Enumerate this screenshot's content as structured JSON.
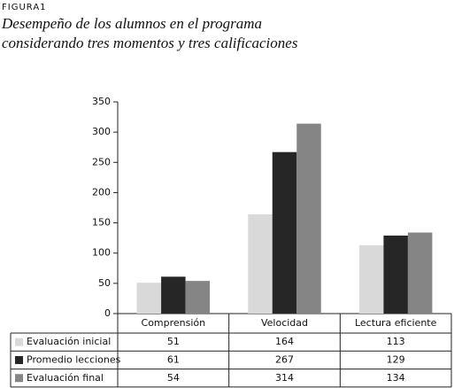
{
  "figure_label": "FIGURA1",
  "chart_data": {
    "type": "bar",
    "title": [
      "Desempeño de los alumnos en el programa",
      "considerando tres momentos y tres calificaciones"
    ],
    "categories": [
      "Comprensión",
      "Velocidad",
      "Lectura eficiente"
    ],
    "series": [
      {
        "name": "Evaluación inicial",
        "color": "#d9d9d9",
        "values": [
          51,
          164,
          113
        ]
      },
      {
        "name": "Promedio lecciones",
        "color": "#262626",
        "values": [
          61,
          267,
          129
        ]
      },
      {
        "name": "Evaluación final",
        "color": "#858585",
        "values": [
          54,
          314,
          134
        ]
      }
    ],
    "ylim": [
      0,
      350
    ],
    "yticks": [
      0,
      50,
      100,
      150,
      200,
      250,
      300,
      350
    ]
  }
}
